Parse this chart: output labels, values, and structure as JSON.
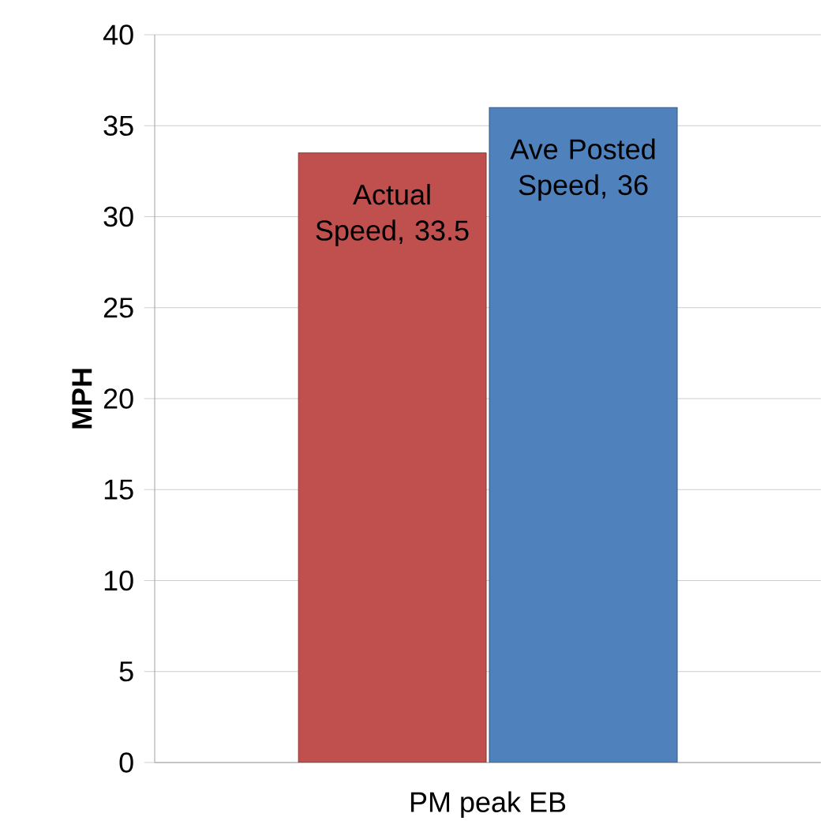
{
  "chart_data": {
    "type": "bar",
    "ylabel": "MPH",
    "categories": [
      "PM peak EB"
    ],
    "series": [
      {
        "color": "#c0504d",
        "values": [
          33.5
        ],
        "value_labels": [
          "Actual Speed, 33.5"
        ]
      },
      {
        "color": "#4f81bd",
        "values": [
          36
        ],
        "value_labels": [
          "Ave Posted Speed, 36"
        ]
      }
    ],
    "ylim": [
      0,
      40
    ],
    "yticks": [
      0,
      5,
      10,
      15,
      20,
      25,
      30,
      35,
      40
    ],
    "grid": "y"
  }
}
